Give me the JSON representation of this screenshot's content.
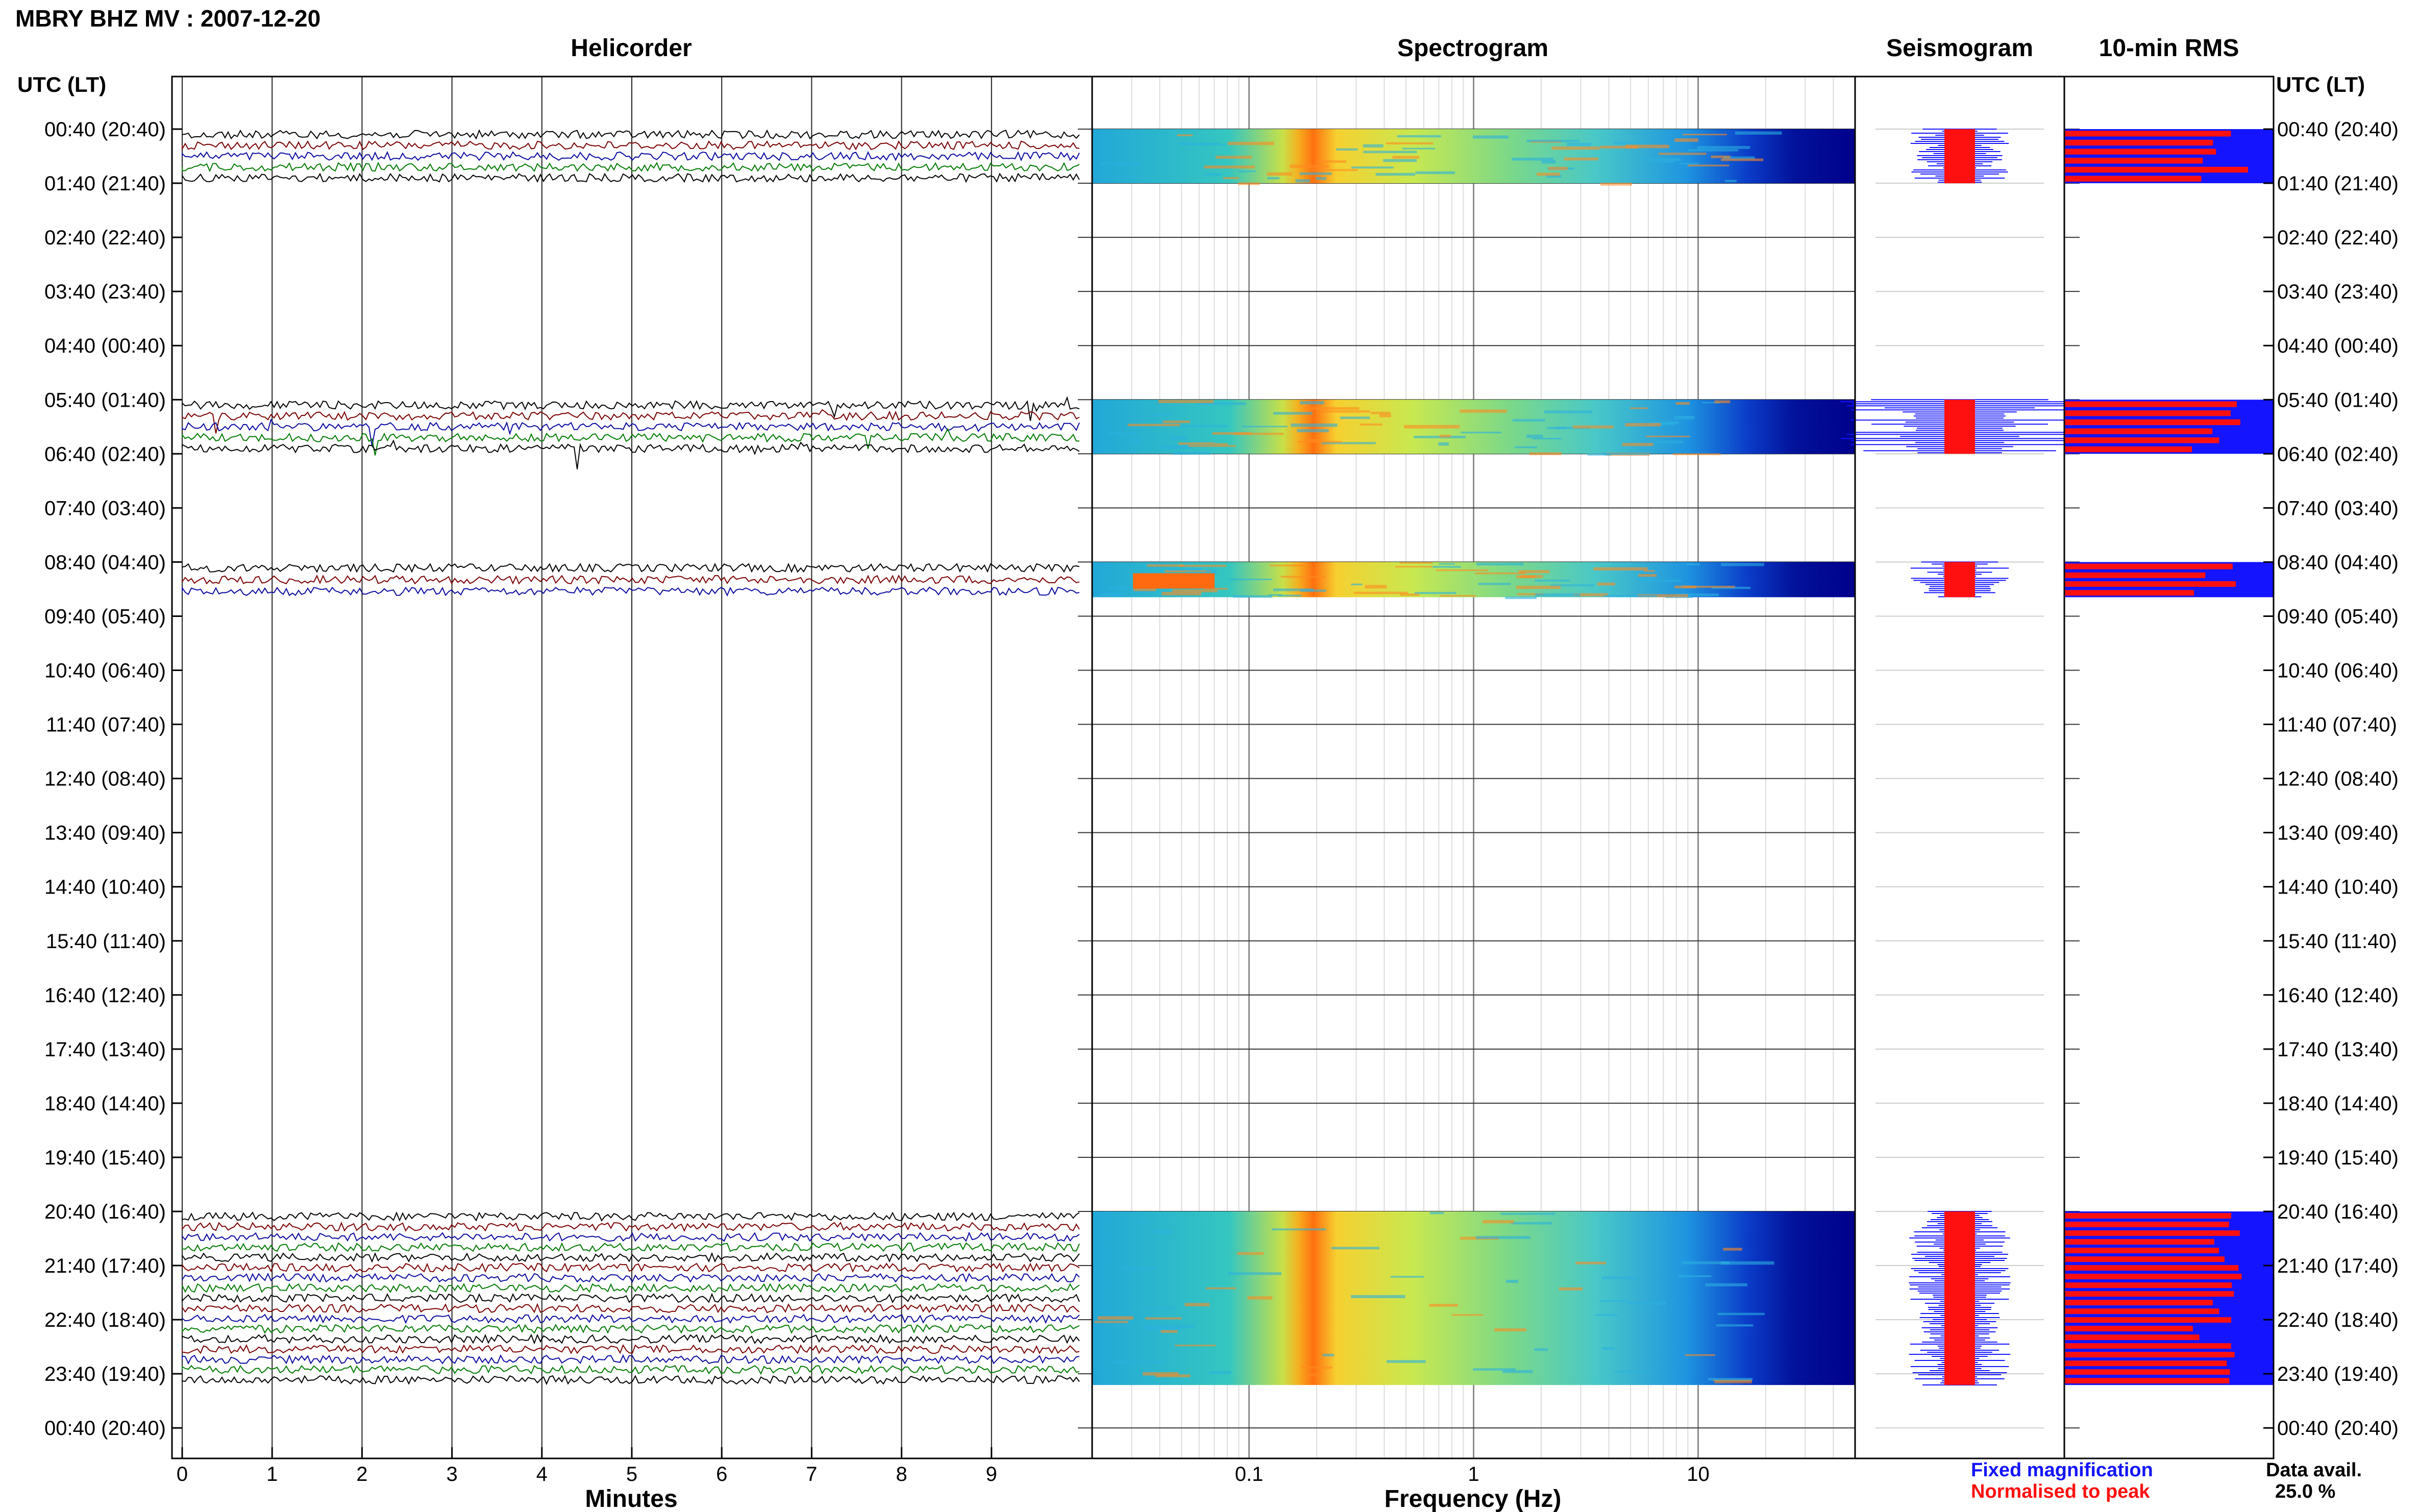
{
  "title": "MBRY BHZ MV : 2007-12-20",
  "panels": {
    "helicorder": "Helicorder",
    "spectrogram": "Spectrogram",
    "seismogram": "Seismogram",
    "rms": "10-min RMS"
  },
  "time_axis_label": "UTC (LT)",
  "rows": [
    "00:40 (20:40)",
    "01:40 (21:40)",
    "02:40 (22:40)",
    "03:40 (23:40)",
    "04:40 (00:40)",
    "05:40 (01:40)",
    "06:40 (02:40)",
    "07:40 (03:40)",
    "08:40 (04:40)",
    "09:40 (05:40)",
    "10:40 (06:40)",
    "11:40 (07:40)",
    "12:40 (08:40)",
    "13:40 (09:40)",
    "14:40 (10:40)",
    "15:40 (11:40)",
    "16:40 (12:40)",
    "17:40 (13:40)",
    "18:40 (14:40)",
    "19:40 (15:40)",
    "20:40 (16:40)",
    "21:40 (17:40)",
    "22:40 (18:40)",
    "23:40 (19:40)",
    "00:40 (20:40)"
  ],
  "x_axes": {
    "minutes": {
      "label": "Minutes",
      "ticks": [
        "0",
        "1",
        "2",
        "3",
        "4",
        "5",
        "6",
        "7",
        "8",
        "9"
      ]
    },
    "frequency": {
      "label": "Frequency (Hz)",
      "ticks": [
        "0.1",
        "1",
        "10"
      ]
    }
  },
  "legend": {
    "fixed": "Fixed magnification",
    "normalised": "Normalised to peak"
  },
  "availability": {
    "label": "Data avail.",
    "value": "25.0 %"
  },
  "colors": {
    "fixed": "#1414ff",
    "normalised": "#ff1010",
    "trace_series": [
      "#000000",
      "#7a0000",
      "#0a0aa0",
      "#007a00"
    ],
    "spectrogram_bg": "#00008b"
  },
  "chart_data": {
    "type": "helicorder",
    "station": "MBRY BHZ MV",
    "date": "2007-12-20",
    "data_blocks_utc": [
      {
        "start": "00:40",
        "end": "01:40",
        "rms_rows": 6
      },
      {
        "start": "05:40",
        "end": "06:40",
        "rms_rows": 6
      },
      {
        "start": "08:40",
        "end": "09:20",
        "rms_rows": 4
      },
      {
        "start": "20:40",
        "end": "00:00",
        "rms_rows": 20
      }
    ],
    "minutes_range": [
      0,
      10
    ],
    "frequency_range_hz": [
      0.02,
      50
    ],
    "frequency_scale": "log",
    "data_availability_percent": 25.0
  }
}
